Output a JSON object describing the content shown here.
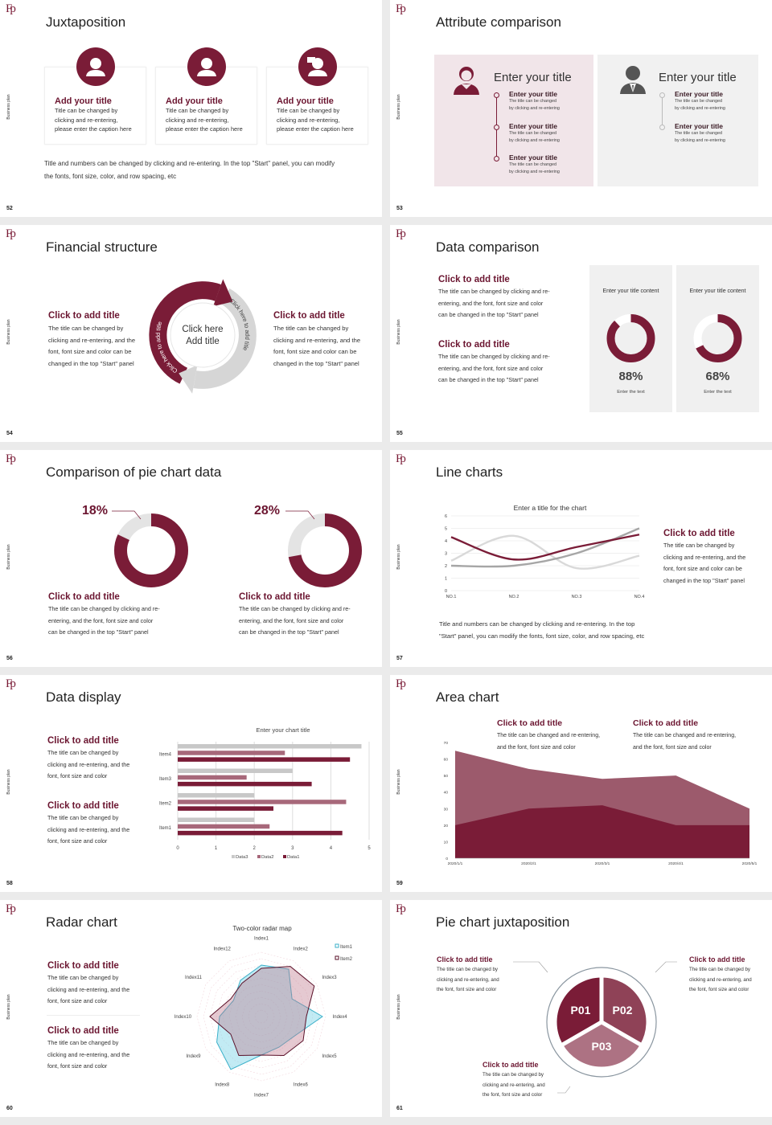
{
  "common": {
    "logo": "Fp",
    "side_text": "Business plan"
  },
  "colors": {
    "maroon": "#7a1c37",
    "mid": "#9c5a6c",
    "light": "#b77f8e",
    "gray": "#d6d6d6",
    "pink_panel": "#f1e5e9"
  },
  "s52": {
    "num": "52",
    "title": "Juxtaposition",
    "cards": [
      {
        "icon": "headset-person-icon",
        "title": "Add your title",
        "lines": [
          "Title can be changed by",
          "clicking and re-entering,",
          "please enter the caption here"
        ]
      },
      {
        "icon": "person-icon",
        "title": "Add your title",
        "lines": [
          "Title can be changed by",
          "clicking and re-entering,",
          "please enter the caption here"
        ]
      },
      {
        "icon": "person-speech-icon",
        "title": "Add your title",
        "lines": [
          "Title can be changed by",
          "clicking and re-entering,",
          "please enter the caption here"
        ]
      }
    ],
    "footer": [
      "Title and numbers can be changed by clicking and re-entering. In the top \"Start\" panel, you can modify",
      "the fonts, font size, color, and row spacing, etc"
    ]
  },
  "s53": {
    "num": "53",
    "title": "Attribute comparison",
    "left": {
      "heading": "Enter your title",
      "items": [
        {
          "title": "Enter your title",
          "lines": [
            "The title can be changed",
            "by clicking and re-entering"
          ]
        },
        {
          "title": "Enter your title",
          "lines": [
            "The title can be changed",
            "by clicking and re-entering"
          ]
        },
        {
          "title": "Enter your title",
          "lines": [
            "The title can be changed",
            "by clicking and re-entering"
          ]
        }
      ]
    },
    "right": {
      "heading": "Enter your title",
      "items": [
        {
          "title": "Enter your title",
          "lines": [
            "The title can be changed",
            "by clicking and re-entering"
          ]
        },
        {
          "title": "Enter your title",
          "lines": [
            "The title can be changed",
            "by clicking and re-entering"
          ]
        }
      ]
    }
  },
  "s54": {
    "num": "54",
    "title": "Financial structure",
    "left": {
      "title": "Click to add title",
      "lines": [
        "The title can be changed by",
        "clicking and re-entering, and the",
        "font, font size and color can be",
        "changed in the top \"Start\" panel"
      ]
    },
    "right": {
      "title": "Click to add title",
      "lines": [
        "The title can be changed by",
        "clicking and re-entering, and the",
        "font, font size and color can be",
        "changed in the top \"Start\" panel"
      ]
    },
    "center": [
      "Click here",
      "Add title"
    ],
    "arc_left": "Click here to add title",
    "arc_right": "Click here to add title"
  },
  "s55": {
    "num": "55",
    "title": "Data comparison",
    "blocks": [
      {
        "title": "Click to add title",
        "lines": [
          "The title can be changed by clicking and re-",
          "entering, and the font, font size and color",
          "can be changed in the top \"Start\" panel"
        ]
      },
      {
        "title": "Click to add title",
        "lines": [
          "The title can be changed by clicking and re-",
          "entering, and the font, font size and color",
          "can be changed in the top \"Start\" panel"
        ]
      }
    ],
    "panels": [
      {
        "heading": "Enter your title content",
        "percent": 88,
        "label": "88%",
        "caption": "Enter the text"
      },
      {
        "heading": "Enter your title content",
        "percent": 68,
        "label": "68%",
        "caption": "Enter the text"
      }
    ]
  },
  "s56": {
    "num": "56",
    "title": "Comparison of pie chart data",
    "pies": [
      {
        "percent": 18,
        "label": "18%",
        "title": "Click to add title",
        "lines": [
          "The title can be changed by clicking and re-",
          "entering, and the font, font size and color",
          "can be changed in the top \"Start\" panel"
        ]
      },
      {
        "percent": 28,
        "label": "28%",
        "title": "Click to add title",
        "lines": [
          "The title can be changed by clicking and re-",
          "entering, and the font, font size and color",
          "can be changed in the top \"Start\" panel"
        ]
      }
    ]
  },
  "s57": {
    "num": "57",
    "title": "Line charts",
    "side": {
      "title": "Click to add title",
      "lines": [
        "The title can be changed by",
        "clicking and re-entering, and the",
        "font, font size and color can be",
        "changed in the top \"Start\" panel"
      ]
    },
    "footer": [
      "Title and numbers can be changed by clicking and re-entering. In the top",
      "\"Start\" panel, you can modify the fonts, font size, color, and row spacing, etc"
    ]
  },
  "s58": {
    "num": "58",
    "title": "Data display",
    "blocks": [
      {
        "title": "Click to add title",
        "lines": [
          "The title can be changed by",
          "clicking and re-entering, and the",
          "font, font size and color"
        ]
      },
      {
        "title": "Click to add title",
        "lines": [
          "The title can be changed by",
          "clicking and re-entering, and the",
          "font, font size and color"
        ]
      }
    ]
  },
  "s59": {
    "num": "59",
    "title": "Area chart",
    "blocks": [
      {
        "title": "Click to add title",
        "lines": [
          "The title can be changed and re-entering,",
          "and the font, font size and color"
        ]
      },
      {
        "title": "Click to add title",
        "lines": [
          "The title can be changed and re-entering,",
          "and the font, font size and color"
        ]
      }
    ]
  },
  "s60": {
    "num": "60",
    "title": "Radar chart",
    "blocks": [
      {
        "title": "Click to add title",
        "lines": [
          "The title can be changed by",
          "clicking and re-entering, and the",
          "font, font size and color"
        ]
      },
      {
        "title": "Click to add title",
        "lines": [
          "The title can be changed by",
          "clicking and re-entering, and the",
          "font, font size and color"
        ]
      }
    ]
  },
  "s61": {
    "num": "61",
    "title": "Pie chart juxtaposition",
    "slices": [
      "P01",
      "P02",
      "P03"
    ],
    "blocks": [
      {
        "title": "Click to add title",
        "lines": [
          "The title can be changed by",
          "clicking and re-entering, and",
          "the font, font size and color"
        ]
      },
      {
        "title": "Click to add title",
        "lines": [
          "The title can be changed by",
          "clicking and re-entering, and",
          "the font, font size and color"
        ]
      },
      {
        "title": "Click to add title",
        "lines": [
          "The title can be changed by",
          "clicking and re-entering, and",
          "the font, font size and color"
        ]
      }
    ]
  },
  "chart_data": [
    {
      "type": "line",
      "title": "Enter a title for the chart",
      "categories": [
        "NO.1",
        "NO.2",
        "NO.3",
        "NO.4"
      ],
      "ylim": [
        0,
        6
      ],
      "yticks": [
        0,
        1,
        2,
        3,
        4,
        5,
        6
      ],
      "smooth": true,
      "series": [
        {
          "values": [
            4.3,
            2.5,
            3.5,
            4.5
          ],
          "color": "#7a1c37"
        },
        {
          "values": [
            2.4,
            4.4,
            1.8,
            2.8
          ],
          "color": "#d9d9d9"
        },
        {
          "values": [
            2.0,
            2.0,
            3.0,
            5.0
          ],
          "color": "#a6a6a6"
        }
      ]
    },
    {
      "type": "bar",
      "orientation": "horizontal",
      "title": "Enter your chart title",
      "categories": [
        "Item1",
        "Item2",
        "Item3",
        "Item4"
      ],
      "xlim": [
        0,
        5
      ],
      "xticks": [
        0,
        1,
        2,
        3,
        4,
        5
      ],
      "legend": "bottom",
      "series": [
        {
          "name": "Data3",
          "values": [
            2.0,
            2.0,
            3.0,
            4.8
          ],
          "color": "#c8c8c8"
        },
        {
          "name": "Data2",
          "values": [
            2.4,
            4.4,
            1.8,
            2.8
          ],
          "color": "#a7687a"
        },
        {
          "name": "Data1",
          "values": [
            4.3,
            2.5,
            3.5,
            4.5
          ],
          "color": "#7a1c37"
        }
      ]
    },
    {
      "type": "area",
      "categories": [
        "2020/1/1",
        "2020/2/1",
        "2020/3/1",
        "2020/4/1",
        "2020/5/1"
      ],
      "ylim": [
        0,
        70
      ],
      "yticks": [
        0,
        10,
        20,
        30,
        40,
        50,
        60,
        70
      ],
      "series": [
        {
          "values": [
            65,
            54,
            48,
            50,
            30
          ],
          "color": "#9c5a6c"
        },
        {
          "values": [
            20,
            30,
            32,
            20,
            20
          ],
          "color": "#7a1c37"
        }
      ]
    },
    {
      "type": "radar",
      "title": "Two-color radar map",
      "axes": [
        "Index1",
        "Index2",
        "Index3",
        "Index4",
        "Index5",
        "Index6",
        "Index7",
        "Index8",
        "Index9",
        "Index10",
        "Index11",
        "Index12"
      ],
      "max": 10,
      "legend": "top-right",
      "series": [
        {
          "name": "Item1",
          "values": [
            8,
            8.5,
            5.5,
            9.5,
            6,
            5.5,
            6,
            9.5,
            8,
            6.5,
            5,
            6.5
          ],
          "color": "#3bb0c9"
        },
        {
          "name": "Item2",
          "values": [
            7.5,
            9,
            9.5,
            7,
            7.5,
            7,
            6,
            7,
            5.5,
            8,
            5.5,
            6
          ],
          "color": "#5a1028"
        }
      ]
    }
  ]
}
